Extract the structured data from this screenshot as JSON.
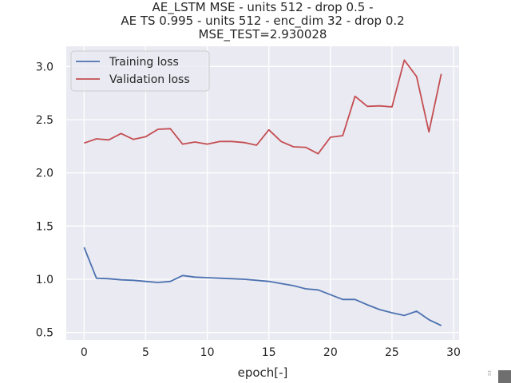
{
  "chart_data": {
    "type": "line",
    "title_lines": [
      "AE_LSTM MSE - units 512 - drop 0.5 -",
      "AE TS 0.995 - units 512 - enc_dim 32 - drop 0.2",
      "MSE_TEST=2.930028"
    ],
    "xlabel": "epoch[-]",
    "ylabel": "",
    "xlim": [
      -1.45,
      30.45
    ],
    "ylim": [
      0.43,
      3.19
    ],
    "xticks": [
      0,
      5,
      10,
      15,
      20,
      25,
      30
    ],
    "yticks": [
      0.5,
      1.0,
      1.5,
      2.0,
      2.5,
      3.0
    ],
    "ytick_labels": [
      "0.5",
      "1.0",
      "1.5",
      "2.0",
      "2.5",
      "3.0"
    ],
    "grid": true,
    "legend_position": "top-left",
    "x": [
      0,
      1,
      2,
      3,
      4,
      5,
      6,
      7,
      8,
      9,
      10,
      11,
      12,
      13,
      14,
      15,
      16,
      17,
      18,
      19,
      20,
      21,
      22,
      23,
      24,
      25,
      26,
      27,
      28,
      29
    ],
    "series": [
      {
        "name": "Training loss",
        "color": "#4c72b0",
        "values": [
          1.3,
          1.01,
          1.005,
          0.995,
          0.99,
          0.98,
          0.97,
          0.98,
          1.035,
          1.02,
          1.015,
          1.01,
          1.005,
          1.0,
          0.99,
          0.98,
          0.96,
          0.94,
          0.91,
          0.9,
          0.855,
          0.81,
          0.81,
          0.76,
          0.715,
          0.685,
          0.66,
          0.7,
          0.62,
          0.565
        ]
      },
      {
        "name": "Validation loss",
        "color": "#c44e52",
        "values": [
          2.28,
          2.32,
          2.31,
          2.37,
          2.315,
          2.34,
          2.41,
          2.415,
          2.27,
          2.29,
          2.27,
          2.295,
          2.295,
          2.285,
          2.26,
          2.405,
          2.295,
          2.245,
          2.24,
          2.18,
          2.335,
          2.35,
          2.72,
          2.625,
          2.63,
          2.62,
          3.06,
          2.905,
          2.385,
          2.93
        ]
      }
    ]
  }
}
